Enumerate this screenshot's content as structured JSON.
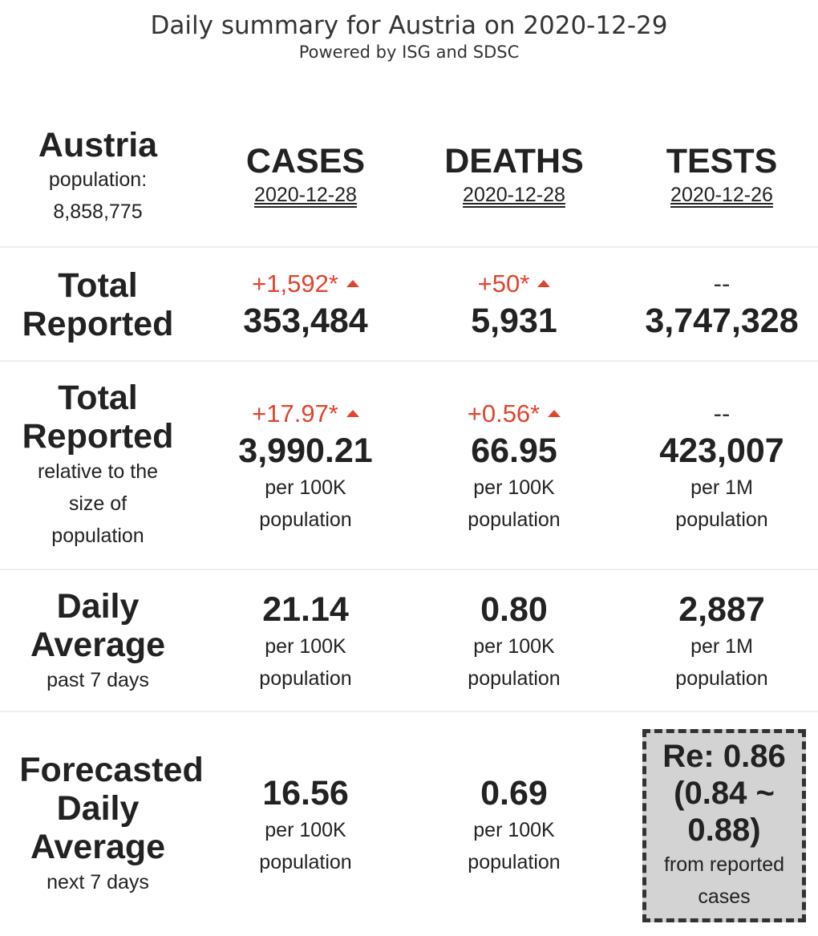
{
  "header": {
    "title": "Daily summary for Austria on 2020-12-29",
    "subtitle": "Powered by ISG and SDSC"
  },
  "country": {
    "name": "Austria",
    "population_label": "population:",
    "population_value": "8,858,775"
  },
  "columns": [
    {
      "title": "CASES",
      "date": "2020-12-28"
    },
    {
      "title": "DEATHS",
      "date": "2020-12-28"
    },
    {
      "title": "TESTS",
      "date": "2020-12-26"
    }
  ],
  "rows": {
    "total": {
      "label_line1": "Total",
      "label_line2": "Reported",
      "cases": {
        "delta": "+1,592*",
        "value": "353,484"
      },
      "deaths": {
        "delta": "+50*",
        "value": "5,931"
      },
      "tests": {
        "delta": "--",
        "value": "3,747,328"
      }
    },
    "relative": {
      "label_line1": "Total",
      "label_line2": "Reported",
      "sub_line1": "relative to the",
      "sub_line2": "size of",
      "sub_line3": "population",
      "cases": {
        "delta": "+17.97*",
        "value": "3,990.21",
        "unit1": "per 100K",
        "unit2": "population"
      },
      "deaths": {
        "delta": "+0.56*",
        "value": "66.95",
        "unit1": "per 100K",
        "unit2": "population"
      },
      "tests": {
        "delta": "--",
        "value": "423,007",
        "unit1": "per 1M",
        "unit2": "population"
      }
    },
    "daily": {
      "label_line1": "Daily",
      "label_line2": "Average",
      "sub": "past 7 days",
      "cases": {
        "value": "21.14",
        "unit1": "per 100K",
        "unit2": "population"
      },
      "deaths": {
        "value": "0.80",
        "unit1": "per 100K",
        "unit2": "population"
      },
      "tests": {
        "value": "2,887",
        "unit1": "per 1M",
        "unit2": "population"
      }
    },
    "forecast": {
      "label_line1": "Forecasted",
      "label_line2": "Daily",
      "label_line3": "Average",
      "sub": "next 7 days",
      "cases": {
        "value": "16.56",
        "unit1": "per 100K",
        "unit2": "population"
      },
      "deaths": {
        "value": "0.69",
        "unit1": "per 100K",
        "unit2": "population"
      },
      "re": {
        "line1": "Re: 0.86",
        "line2": "(0.84 ~",
        "line3": "0.88)",
        "sub1": "from reported",
        "sub2": "cases"
      }
    }
  },
  "colors": {
    "increase": "#e0442f",
    "text": "#222222",
    "re_box": "#d3d3d3"
  }
}
